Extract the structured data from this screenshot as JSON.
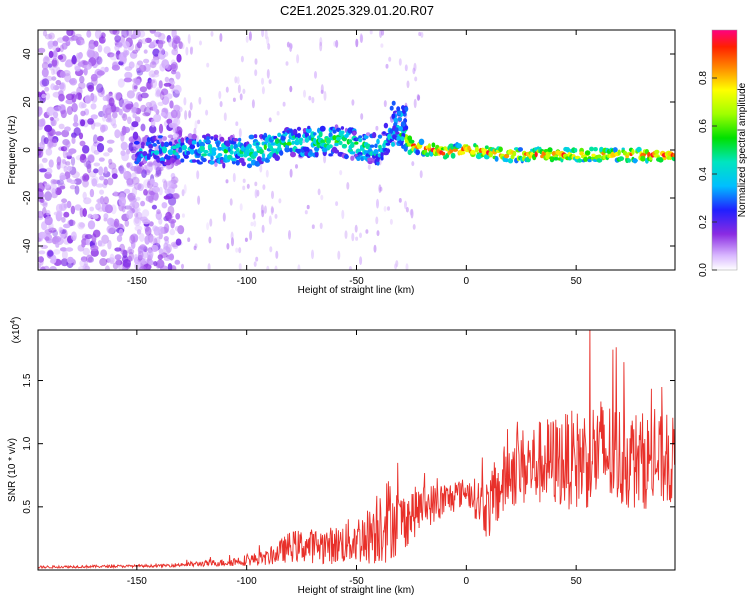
{
  "title": "C2E1.2025.329.01.20.R07",
  "chart_data": [
    {
      "type": "heatmap",
      "xlabel": "Height of straight line (km)",
      "ylabel": "Frequency (Hz)",
      "xlim": [
        -195,
        95
      ],
      "ylim": [
        -50,
        50
      ],
      "xticks": [
        -150,
        -100,
        -50,
        0,
        50
      ],
      "yticks": [
        -40,
        -20,
        0,
        20,
        40
      ],
      "colorbar": {
        "label": "Normalized spectral amplitude",
        "range": [
          0,
          1
        ],
        "ticks": [
          "0.0",
          "0.2",
          "0.4",
          "0.6",
          "0.8"
        ],
        "tick_values": [
          0.0,
          0.2,
          0.4,
          0.6,
          0.8
        ]
      },
      "ridge": [
        {
          "x": -140,
          "f": 0,
          "amp": 0.35
        },
        {
          "x": -120,
          "f": 0,
          "amp": 0.45
        },
        {
          "x": -100,
          "f": -1,
          "amp": 0.45
        },
        {
          "x": -80,
          "f": 3,
          "amp": 0.5
        },
        {
          "x": -60,
          "f": 4,
          "amp": 0.5
        },
        {
          "x": -40,
          "f": 0,
          "amp": 0.45
        },
        {
          "x": -32,
          "f": 10,
          "amp": 0.3
        },
        {
          "x": -25,
          "f": 2,
          "amp": 0.85
        },
        {
          "x": -10,
          "f": -1,
          "amp": 0.95
        },
        {
          "x": 0,
          "f": 0,
          "amp": 0.9
        },
        {
          "x": 20,
          "f": -2,
          "amp": 0.9
        },
        {
          "x": 50,
          "f": -2,
          "amp": 0.85
        },
        {
          "x": 90,
          "f": -2,
          "amp": 0.9
        }
      ]
    },
    {
      "type": "line",
      "xlabel": "Height of straight line (km)",
      "ylabel": "SNR (10 * v/v)",
      "yscale_label": "(x10",
      "yscale_exp": "4",
      "yscale_close": ")",
      "xlim": [
        -195,
        95
      ],
      "ylim": [
        0,
        1.9
      ],
      "xticks": [
        -150,
        -100,
        -50,
        0,
        50
      ],
      "yticks": [
        "0.5",
        "1.0",
        "1.5"
      ],
      "ytick_values": [
        0.5,
        1.0,
        1.5
      ],
      "color": "#e8302a",
      "envelope": [
        {
          "x": -195,
          "base": 0.02,
          "spread": 0.02
        },
        {
          "x": -140,
          "base": 0.03,
          "spread": 0.02
        },
        {
          "x": -110,
          "base": 0.05,
          "spread": 0.06
        },
        {
          "x": -90,
          "base": 0.08,
          "spread": 0.12
        },
        {
          "x": -80,
          "base": 0.15,
          "spread": 0.25
        },
        {
          "x": -60,
          "base": 0.15,
          "spread": 0.3
        },
        {
          "x": -45,
          "base": 0.2,
          "spread": 0.45
        },
        {
          "x": -38,
          "base": 0.3,
          "spread": 0.75
        },
        {
          "x": -30,
          "base": 0.3,
          "spread": 0.5
        },
        {
          "x": -20,
          "base": 0.45,
          "spread": 0.35
        },
        {
          "x": -10,
          "base": 0.5,
          "spread": 0.3
        },
        {
          "x": 0,
          "base": 0.6,
          "spread": 0.2
        },
        {
          "x": 10,
          "base": 0.4,
          "spread": 0.5
        },
        {
          "x": 20,
          "base": 0.7,
          "spread": 0.6
        },
        {
          "x": 35,
          "base": 0.75,
          "spread": 0.7
        },
        {
          "x": 50,
          "base": 0.75,
          "spread": 0.8
        },
        {
          "x": 60,
          "base": 0.8,
          "spread": 0.9
        },
        {
          "x": 75,
          "base": 0.75,
          "spread": 0.8
        },
        {
          "x": 95,
          "base": 0.75,
          "spread": 0.7
        }
      ]
    }
  ]
}
